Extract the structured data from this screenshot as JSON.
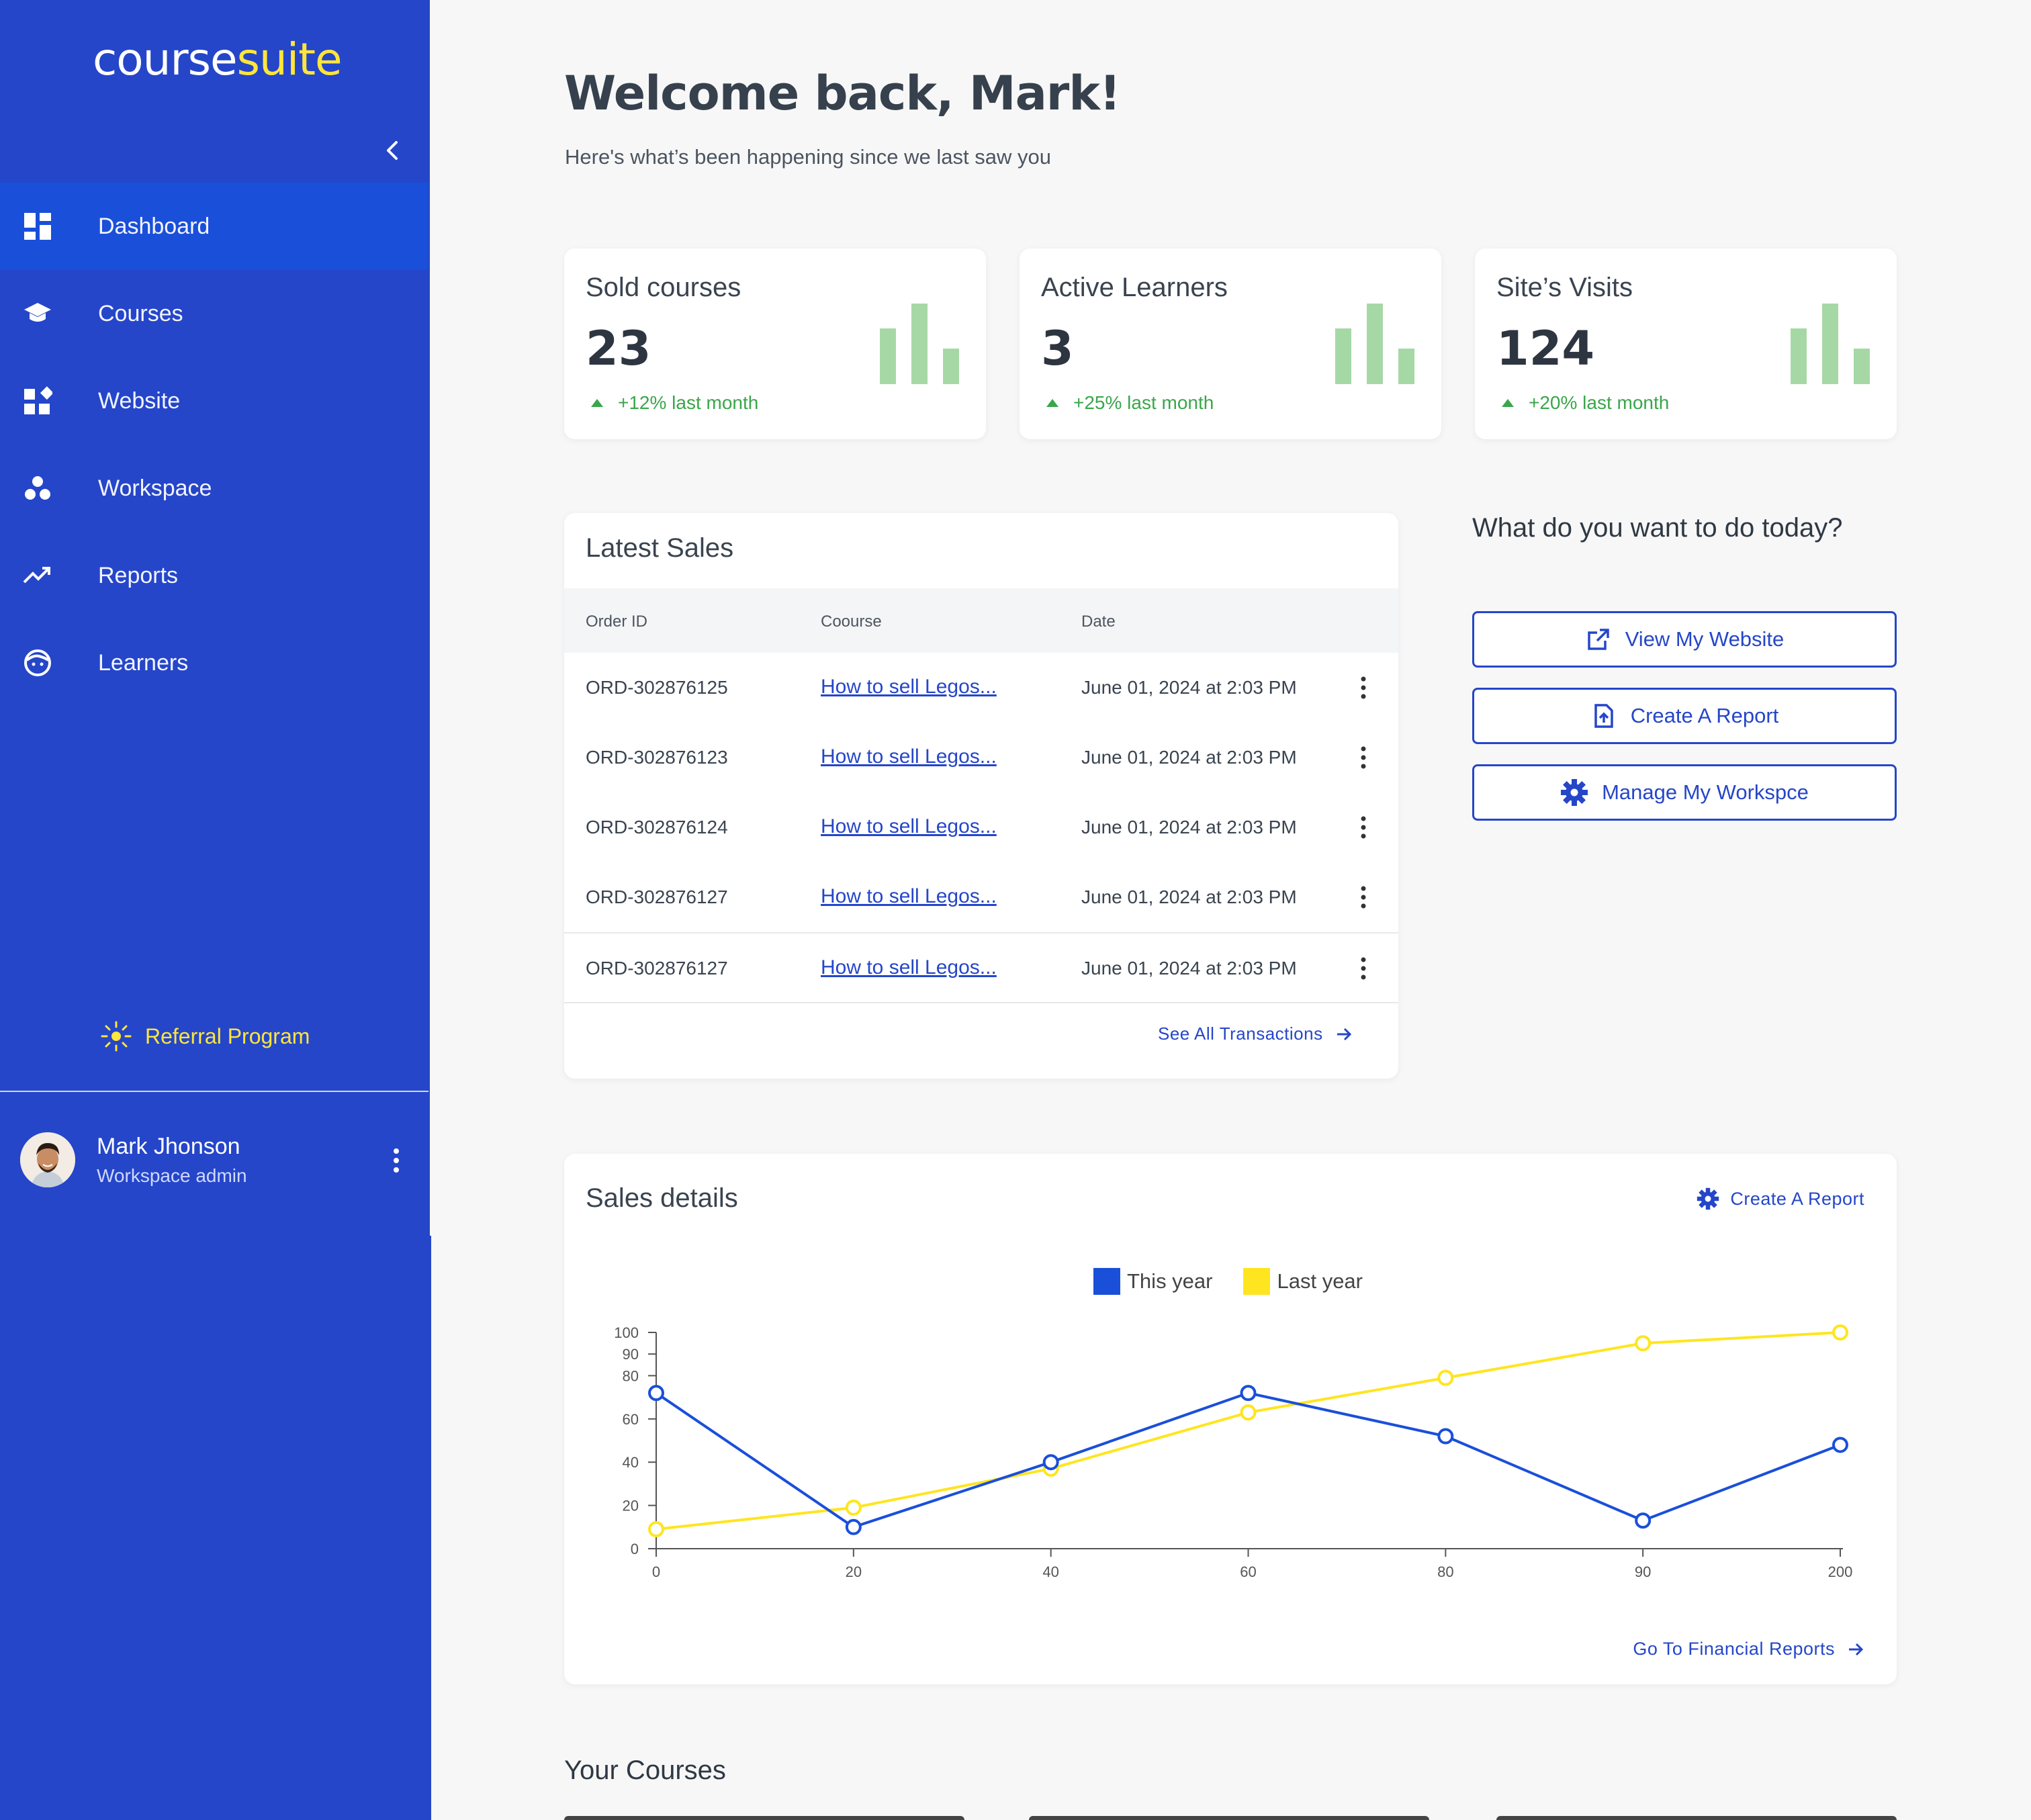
{
  "sidebar": {
    "logo_part1": "course",
    "logo_part2": "suite",
    "nav": [
      {
        "label": "Dashboard",
        "icon": "dashboard-icon"
      },
      {
        "label": "Courses",
        "icon": "graduation-cap-icon"
      },
      {
        "label": "Website",
        "icon": "widgets-icon"
      },
      {
        "label": "Workspace",
        "icon": "workspace-icon"
      },
      {
        "label": "Reports",
        "icon": "trending-up-icon"
      },
      {
        "label": "Learners",
        "icon": "face-icon"
      }
    ],
    "referral": "Referral Program",
    "user": {
      "name": "Mark Jhonson",
      "role": "Workspace admin"
    }
  },
  "header": {
    "title": "Welcome back, Mark!",
    "subtitle": "Here's what’s been happening since we last saw you"
  },
  "stats": [
    {
      "label": "Sold courses",
      "value": "23",
      "trend": "+12% last month"
    },
    {
      "label": "Active Learners",
      "value": "3",
      "trend": "+25% last month"
    },
    {
      "label": "Site’s Visits",
      "value": "124",
      "trend": "+20% last month"
    }
  ],
  "sales": {
    "title": "Latest Sales",
    "columns": [
      "Order ID",
      "Coourse",
      "Date"
    ],
    "rows": [
      {
        "id": "ORD-302876125",
        "course": "How to sell Legos...",
        "date": "June 01, 2024 at 2:03 PM"
      },
      {
        "id": "ORD-302876123",
        "course": "How to sell Legos...",
        "date": "June 01, 2024 at 2:03 PM"
      },
      {
        "id": "ORD-302876124",
        "course": "How to sell Legos...",
        "date": "June 01, 2024 at 2:03 PM"
      },
      {
        "id": "ORD-302876127",
        "course": "How to sell Legos...",
        "date": "June 01, 2024 at 2:03 PM"
      },
      {
        "id": "ORD-302876127",
        "course": "How to sell Legos...",
        "date": "June 01, 2024 at 2:03 PM"
      }
    ],
    "see_all": "See All Transactions"
  },
  "todo": {
    "title": "What do you want to do today?",
    "actions": [
      {
        "label": "View My Website",
        "icon": "external-link-icon"
      },
      {
        "label": "Create A Report",
        "icon": "file-upload-icon"
      },
      {
        "label": "Manage My Workspce",
        "icon": "gear-icon"
      }
    ]
  },
  "sales_details": {
    "title": "Sales details",
    "create_report": "Create A Report",
    "financial_link": "Go To Financial Reports"
  },
  "chart_data": {
    "type": "line",
    "x": [
      "0",
      "20",
      "40",
      "60",
      "80",
      "90",
      "200"
    ],
    "series": [
      {
        "name": "This year",
        "color": "#1a4fd9",
        "values": [
          72,
          10,
          40,
          72,
          52,
          13,
          48
        ]
      },
      {
        "name": "Last year",
        "color": "#ffe51f",
        "values": [
          9,
          19,
          37,
          63,
          79,
          95,
          100
        ]
      }
    ],
    "yticks": [
      0,
      20,
      40,
      60,
      80,
      90,
      100
    ],
    "ylim": [
      0,
      100
    ],
    "legend": "top-center",
    "grid": false
  },
  "courses_section": {
    "title": "Your Courses"
  },
  "colors": {
    "sidebar": "#2546c9",
    "active": "#1a4fd9",
    "accent": "#ffe63a",
    "positive": "#3aa64a"
  }
}
